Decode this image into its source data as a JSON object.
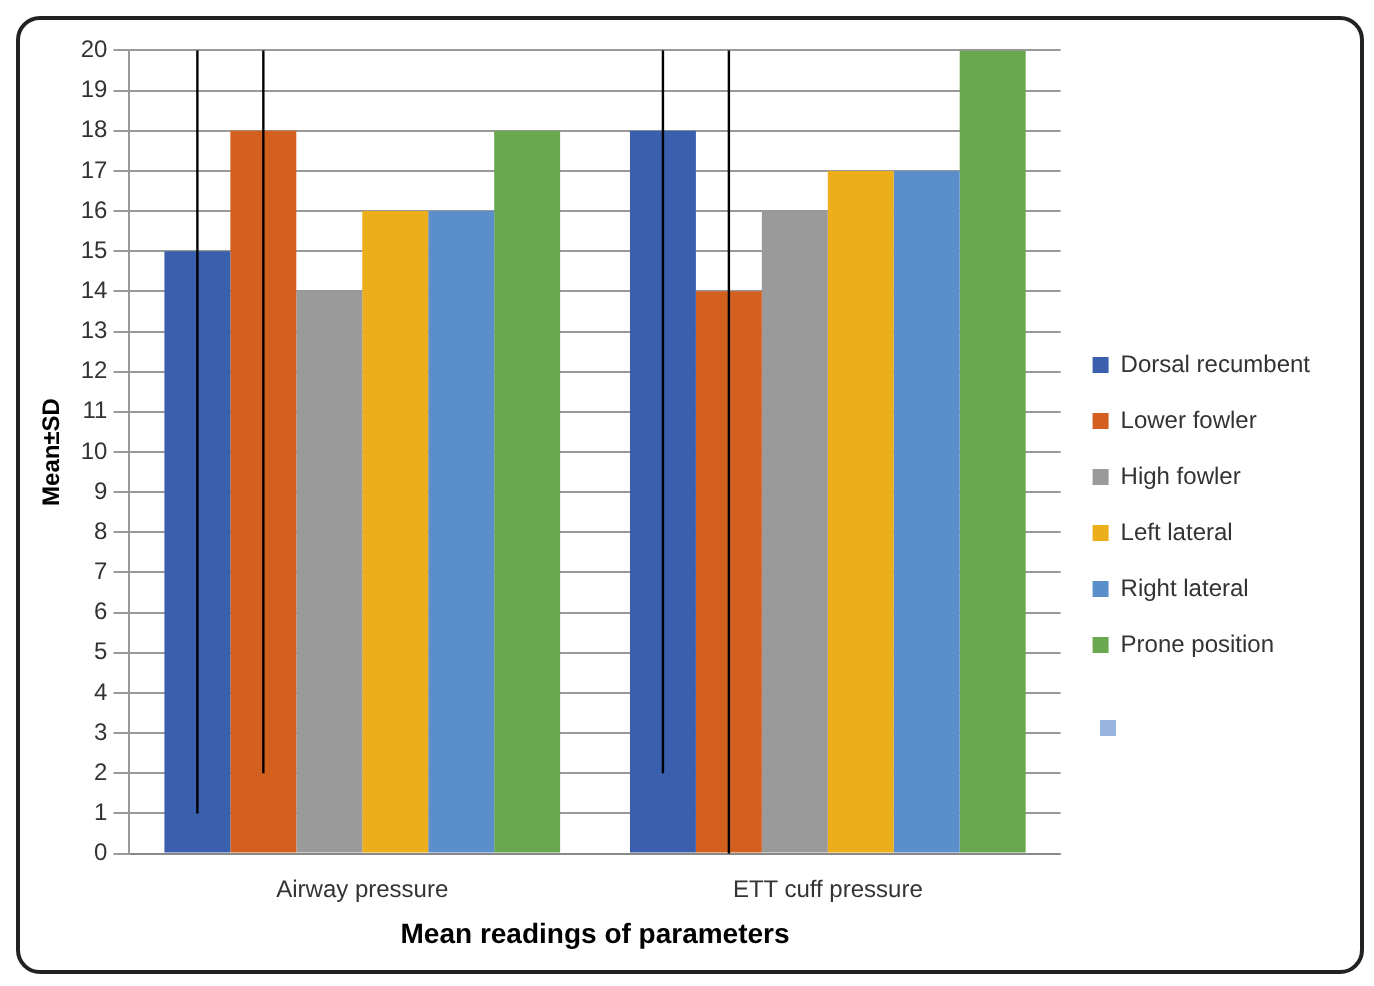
{
  "chart_data": {
    "type": "bar",
    "xlabel": "Mean readings of parameters",
    "ylabel": "Mean±SD",
    "categories": [
      "Airway pressure",
      "ETT cuff pressure"
    ],
    "series": [
      {
        "name": "Dorsal recumbent",
        "color": "#3a5fad",
        "values": [
          15,
          18
        ],
        "errors": [
          [
            1,
            20
          ],
          [
            2,
            20
          ]
        ]
      },
      {
        "name": "Lower fowler",
        "color": "#d4601f",
        "values": [
          18,
          14
        ],
        "errors": [
          [
            2,
            20
          ],
          [
            0,
            20
          ]
        ]
      },
      {
        "name": "High fowler",
        "color": "#9a9a9a",
        "values": [
          14,
          16
        ]
      },
      {
        "name": "Left lateral",
        "color": "#edae1c",
        "values": [
          16,
          17
        ]
      },
      {
        "name": "Right lateral",
        "color": "#5b8fcb",
        "values": [
          16,
          17
        ]
      },
      {
        "name": "Prone position",
        "color": "#6aa84f",
        "values": [
          18,
          20
        ]
      }
    ],
    "ylim": [
      0,
      20
    ],
    "yticks": [
      0,
      1,
      2,
      3,
      4,
      5,
      6,
      7,
      8,
      9,
      10,
      11,
      12,
      13,
      14,
      15,
      16,
      17,
      18,
      19,
      20
    ],
    "grid": "y",
    "legend": "right"
  }
}
